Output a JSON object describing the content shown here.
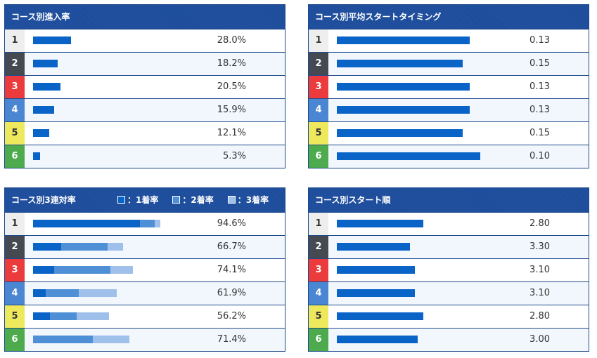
{
  "colors": {
    "header": "#1b4b9b",
    "bar": "#0a64c8",
    "bar_2nd": "#4e8fd6",
    "bar_3rd": "#9ec0ea",
    "lanes": [
      "#eeeeee",
      "#454a52",
      "#ec3b3c",
      "#4a86d2",
      "#eee85c",
      "#4dab4d"
    ],
    "lane_text": [
      "#333333",
      "#ffffff",
      "#ffffff",
      "#ffffff",
      "#333333",
      "#ffffff"
    ]
  },
  "legend": {
    "first": "：1着率",
    "second": "：2着率",
    "third": "：3着率"
  },
  "chart_data": [
    {
      "type": "bar",
      "title": "コース別進入率",
      "categories": [
        "1",
        "2",
        "3",
        "4",
        "5",
        "6"
      ],
      "values": [
        28.0,
        18.2,
        20.5,
        15.9,
        12.1,
        5.3
      ],
      "labels": [
        "28.0%",
        "18.2%",
        "20.5%",
        "15.9%",
        "12.1%",
        "5.3%"
      ],
      "xlim": [
        0,
        120
      ]
    },
    {
      "type": "bar",
      "title": "コース別平均スタートタイミング",
      "categories": [
        "1",
        "2",
        "3",
        "4",
        "5",
        "6"
      ],
      "values": [
        0.13,
        0.15,
        0.13,
        0.13,
        0.15,
        0.1
      ],
      "labels": [
        "0.13",
        "0.15",
        "0.13",
        "0.13",
        "0.15",
        "0.10"
      ],
      "xlim": [
        0.5,
        0.05
      ]
    },
    {
      "type": "bar",
      "title": "コース別3連対率",
      "categories": [
        "1",
        "2",
        "3",
        "4",
        "5",
        "6"
      ],
      "stacked": true,
      "series": [
        {
          "name": "1着率",
          "values": [
            79.5,
            21.1,
            15.6,
            9.5,
            12.6,
            0
          ]
        },
        {
          "name": "2着率",
          "values": [
            10.7,
            34.4,
            41.9,
            24.6,
            19.9,
            44.2
          ]
        },
        {
          "name": "3着率",
          "values": [
            4.4,
            11.2,
            16.6,
            27.8,
            23.7,
            27.2
          ]
        }
      ],
      "labels": [
        "94.6%",
        "66.7%",
        "74.1%",
        "61.9%",
        "56.2%",
        "71.4%"
      ],
      "xlim": [
        0,
        120
      ]
    },
    {
      "type": "bar",
      "title": "コース別スタート順",
      "categories": [
        "1",
        "2",
        "3",
        "4",
        "5",
        "6"
      ],
      "values": [
        2.8,
        3.3,
        3.1,
        3.1,
        2.8,
        3.0
      ],
      "labels": [
        "2.80",
        "3.30",
        "3.10",
        "3.10",
        "2.80",
        "3.00"
      ],
      "xlim": [
        6,
        0
      ]
    }
  ]
}
